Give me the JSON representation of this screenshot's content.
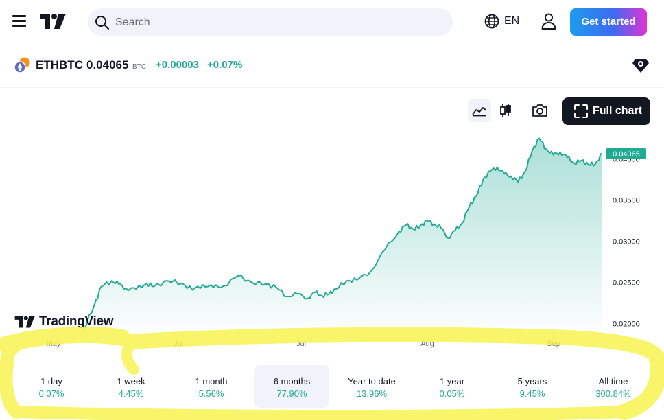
{
  "header": {
    "search_placeholder": "Search",
    "language": "EN",
    "cta_label": "Get started"
  },
  "symbol": {
    "name": "ETHBTC",
    "price": "0.04065",
    "currency": "BTC",
    "change": "+0.00003",
    "change_percent": "+0.07%"
  },
  "toolbar": {
    "full_chart_label": "Full chart"
  },
  "watermark": "TradingView",
  "colors": {
    "accent": "#22ab94",
    "marker": "#f7f34b",
    "cta_start": "#1e9bf0",
    "cta_end": "#e033d6"
  },
  "chart_data": {
    "type": "area",
    "x_labels": [
      "May",
      "Jun",
      "Jul",
      "Aug",
      "Sep"
    ],
    "y_ticks": [
      "0.02000",
      "0.02500",
      "0.03000",
      "0.03500",
      "0.04000"
    ],
    "ylim": [
      0.0193,
      0.0428
    ],
    "last_value_label": "0.04065",
    "grid": false,
    "x": [
      0,
      3,
      5,
      8,
      10,
      12,
      15,
      18,
      20,
      24,
      28,
      31,
      34,
      37,
      40,
      44,
      48,
      52,
      55,
      58,
      61,
      64,
      66,
      68,
      70,
      72,
      75,
      78,
      82,
      86,
      90,
      92,
      94,
      96,
      98,
      100,
      102,
      104,
      106,
      108,
      110,
      112,
      114,
      116,
      118,
      120,
      122,
      124,
      126,
      128,
      130,
      132,
      134,
      136,
      138,
      140,
      142,
      144,
      146,
      148
    ],
    "values": [
      0.0193,
      0.0222,
      0.0245,
      0.0252,
      0.0248,
      0.0243,
      0.0242,
      0.0249,
      0.0245,
      0.0252,
      0.0249,
      0.0241,
      0.0247,
      0.0244,
      0.0246,
      0.0258,
      0.025,
      0.0248,
      0.0244,
      0.0233,
      0.0236,
      0.0231,
      0.0238,
      0.0234,
      0.0236,
      0.0242,
      0.0252,
      0.0253,
      0.0264,
      0.029,
      0.0312,
      0.032,
      0.0315,
      0.0318,
      0.0325,
      0.0321,
      0.0316,
      0.0304,
      0.0313,
      0.0322,
      0.0342,
      0.0355,
      0.0375,
      0.0385,
      0.039,
      0.0382,
      0.0379,
      0.0372,
      0.0385,
      0.041,
      0.0425,
      0.0412,
      0.0405,
      0.0408,
      0.0402,
      0.0395,
      0.0398,
      0.0393,
      0.0394,
      0.04065
    ]
  },
  "periods": [
    {
      "label": "1 day",
      "value": "0.07%"
    },
    {
      "label": "1 week",
      "value": "4.45%"
    },
    {
      "label": "1 month",
      "value": "5.56%"
    },
    {
      "label": "6 months",
      "value": "77.90%",
      "active": true
    },
    {
      "label": "Year to date",
      "value": "13.96%"
    },
    {
      "label": "1 year",
      "value": "0.05%"
    },
    {
      "label": "5 years",
      "value": "9.45%"
    },
    {
      "label": "All time",
      "value": "300.84%"
    }
  ]
}
